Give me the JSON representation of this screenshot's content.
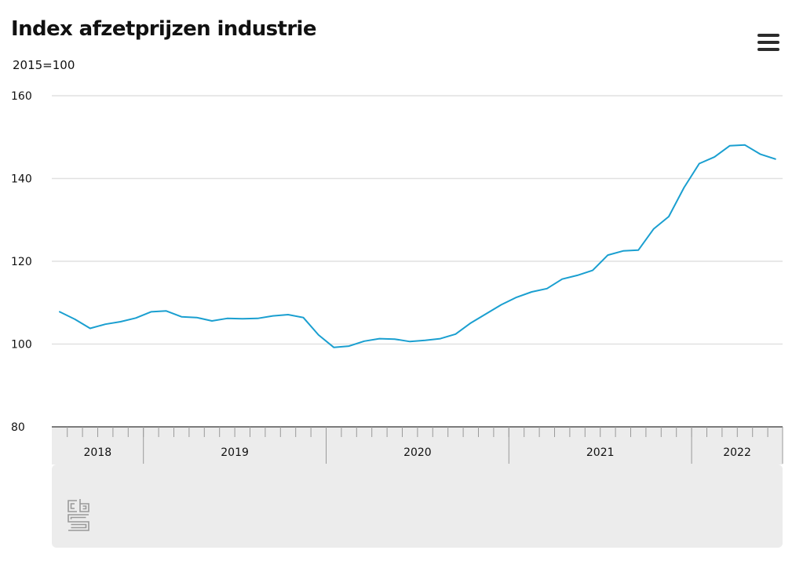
{
  "header": {
    "title": "Index afzetprijzen industrie",
    "subtitle": "2015=100"
  },
  "icons": {
    "menu": "hamburger-menu-icon",
    "logo": "cbs-logo-icon"
  },
  "colors": {
    "line": "#1a9fd0",
    "grid": "#e1e1e1",
    "navigator_bg": "#ececec",
    "text": "#111111"
  },
  "chart_data": {
    "type": "line",
    "title": "Index afzetprijzen industrie",
    "subtitle": "2015=100",
    "xlabel": "",
    "ylabel": "",
    "ylim": [
      80,
      160
    ],
    "y_ticks": [
      80,
      100,
      120,
      140,
      160
    ],
    "grid": true,
    "legend": "none",
    "x_start": "2018-07",
    "x_end": "2022-07",
    "year_labels": [
      "2018",
      "2019",
      "2020",
      "2021",
      "2022"
    ],
    "series": [
      {
        "values": [
          107.8,
          106.0,
          103.8,
          104.8,
          105.4,
          106.3,
          107.8,
          108.0,
          106.6,
          106.4,
          105.6,
          106.2,
          106.1,
          106.2,
          106.8,
          107.1,
          106.4,
          102.2,
          99.2,
          99.5,
          100.7,
          101.3,
          101.2,
          100.6,
          100.9,
          101.3,
          102.4,
          105.1,
          107.3,
          109.5,
          111.3,
          112.6,
          113.4,
          115.7,
          116.6,
          117.8,
          121.5,
          122.5,
          122.7,
          127.8,
          130.8,
          137.8,
          143.6,
          145.2,
          147.9,
          148.1,
          145.9,
          144.7
        ]
      }
    ]
  }
}
